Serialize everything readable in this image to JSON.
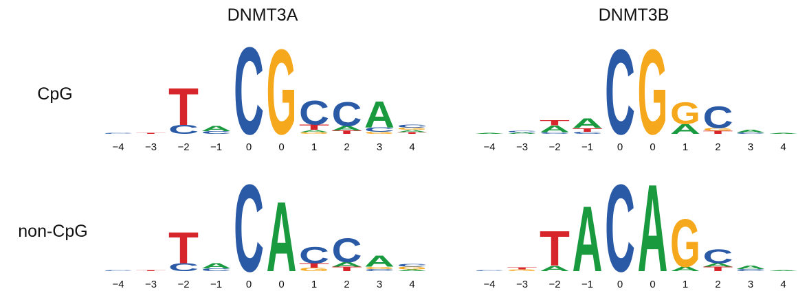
{
  "column_titles": [
    "DNMT3A",
    "DNMT3B"
  ],
  "row_labels": [
    "CpG",
    "non-CpG"
  ],
  "colors": {
    "A": "#1a9a3e",
    "C": "#2a5aa6",
    "G": "#f6a81c",
    "T": "#d7262b"
  },
  "panels": [
    {
      "positions": [
        "−4",
        "−3",
        "−2",
        "−1",
        "0",
        "0",
        "1",
        "2",
        "3",
        "4"
      ],
      "stacks": [
        [
          {
            "letter": "C",
            "bits": 0.02
          }
        ],
        [
          {
            "letter": "T",
            "bits": 0.02
          }
        ],
        [
          {
            "letter": "C",
            "bits": 0.2
          },
          {
            "letter": "T",
            "bits": 0.85
          }
        ],
        [
          {
            "letter": "C",
            "bits": 0.06
          },
          {
            "letter": "A",
            "bits": 0.12
          }
        ],
        [
          {
            "letter": "C",
            "bits": 2.0
          }
        ],
        [
          {
            "letter": "G",
            "bits": 1.95
          }
        ],
        [
          {
            "letter": "G",
            "bits": 0.04
          },
          {
            "letter": "A",
            "bits": 0.05
          },
          {
            "letter": "T",
            "bits": 0.12
          },
          {
            "letter": "C",
            "bits": 0.55
          }
        ],
        [
          {
            "letter": "T",
            "bits": 0.08
          },
          {
            "letter": "A",
            "bits": 0.1
          },
          {
            "letter": "C",
            "bits": 0.55
          }
        ],
        [
          {
            "letter": "G",
            "bits": 0.05
          },
          {
            "letter": "C",
            "bits": 0.1
          },
          {
            "letter": "A",
            "bits": 0.6
          }
        ],
        [
          {
            "letter": "T",
            "bits": 0.04
          },
          {
            "letter": "A",
            "bits": 0.05
          },
          {
            "letter": "G",
            "bits": 0.05
          },
          {
            "letter": "C",
            "bits": 0.07
          }
        ]
      ]
    },
    {
      "positions": [
        "−4",
        "−3",
        "−2",
        "−1",
        "0",
        "0",
        "1",
        "2",
        "3",
        "4"
      ],
      "stacks": [
        [
          {
            "letter": "A",
            "bits": 0.02
          }
        ],
        [
          {
            "letter": "A",
            "bits": 0.03
          },
          {
            "letter": "C",
            "bits": 0.04
          }
        ],
        [
          {
            "letter": "C",
            "bits": 0.04
          },
          {
            "letter": "A",
            "bits": 0.15
          },
          {
            "letter": "T",
            "bits": 0.12
          }
        ],
        [
          {
            "letter": "C",
            "bits": 0.05
          },
          {
            "letter": "T",
            "bits": 0.08
          },
          {
            "letter": "A",
            "bits": 0.22
          }
        ],
        [
          {
            "letter": "C",
            "bits": 1.95
          }
        ],
        [
          {
            "letter": "G",
            "bits": 1.95
          }
        ],
        [
          {
            "letter": "A",
            "bits": 0.22
          },
          {
            "letter": "G",
            "bits": 0.5
          }
        ],
        [
          {
            "letter": "T",
            "bits": 0.07
          },
          {
            "letter": "G",
            "bits": 0.06
          },
          {
            "letter": "C",
            "bits": 0.5
          }
        ],
        [
          {
            "letter": "C",
            "bits": 0.03
          },
          {
            "letter": "A",
            "bits": 0.06
          }
        ],
        [
          {
            "letter": "A",
            "bits": 0.02
          }
        ]
      ]
    },
    {
      "positions": [
        "−4",
        "−3",
        "−2",
        "−1",
        "0",
        "0",
        "1",
        "2",
        "3",
        "4"
      ],
      "stacks": [
        [
          {
            "letter": "C",
            "bits": 0.02
          }
        ],
        [
          {
            "letter": "T",
            "bits": 0.02
          }
        ],
        [
          {
            "letter": "C",
            "bits": 0.18
          },
          {
            "letter": "T",
            "bits": 0.72
          }
        ],
        [
          {
            "letter": "C",
            "bits": 0.06
          },
          {
            "letter": "A",
            "bits": 0.12
          }
        ],
        [
          {
            "letter": "C",
            "bits": 2.0
          }
        ],
        [
          {
            "letter": "A",
            "bits": 1.6
          }
        ],
        [
          {
            "letter": "G",
            "bits": 0.08
          },
          {
            "letter": "T",
            "bits": 0.1
          },
          {
            "letter": "C",
            "bits": 0.38
          }
        ],
        [
          {
            "letter": "T",
            "bits": 0.1
          },
          {
            "letter": "A",
            "bits": 0.1
          },
          {
            "letter": "C",
            "bits": 0.55
          }
        ],
        [
          {
            "letter": "C",
            "bits": 0.05
          },
          {
            "letter": "G",
            "bits": 0.05
          },
          {
            "letter": "A",
            "bits": 0.25
          }
        ],
        [
          {
            "letter": "A",
            "bits": 0.04
          },
          {
            "letter": "G",
            "bits": 0.06
          },
          {
            "letter": "C",
            "bits": 0.06
          }
        ]
      ]
    },
    {
      "positions": [
        "−4",
        "−3",
        "−2",
        "−1",
        "0",
        "0",
        "1",
        "2",
        "3",
        "4"
      ],
      "stacks": [
        [
          {
            "letter": "C",
            "bits": 0.02
          }
        ],
        [
          {
            "letter": "G",
            "bits": 0.04
          },
          {
            "letter": "T",
            "bits": 0.05
          }
        ],
        [
          {
            "letter": "A",
            "bits": 0.12
          },
          {
            "letter": "T",
            "bits": 0.8
          }
        ],
        [
          {
            "letter": "A",
            "bits": 1.5
          }
        ],
        [
          {
            "letter": "C",
            "bits": 2.0
          }
        ],
        [
          {
            "letter": "A",
            "bits": 2.0
          }
        ],
        [
          {
            "letter": "A",
            "bits": 0.1
          },
          {
            "letter": "G",
            "bits": 1.1
          }
        ],
        [
          {
            "letter": "T",
            "bits": 0.1
          },
          {
            "letter": "A",
            "bits": 0.08
          },
          {
            "letter": "C",
            "bits": 0.32
          }
        ],
        [
          {
            "letter": "C",
            "bits": 0.05
          },
          {
            "letter": "A",
            "bits": 0.08
          }
        ],
        [
          {
            "letter": "A",
            "bits": 0.02
          }
        ]
      ]
    }
  ]
}
